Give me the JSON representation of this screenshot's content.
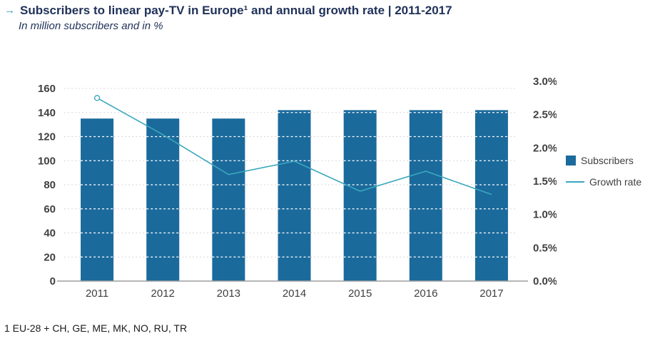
{
  "header": {
    "arrow": "→",
    "title": "Subscribers to linear pay-TV in Europe¹ and annual growth rate | 2011-2017",
    "subtitle": "In million subscribers and in %"
  },
  "footnote": "1 EU-28 + CH, GE, ME, MK, NO, RU, TR",
  "legend": {
    "items": [
      {
        "label": "Subscribers",
        "type": "bar"
      },
      {
        "label": "Growth rate",
        "type": "line"
      }
    ]
  },
  "colors": {
    "bar": "#1b6a9c",
    "line": "#3aa7bd",
    "title": "#1f3058",
    "arrow": "#2f9bb4",
    "axis_text": "#3f3f3f",
    "baseline": "#9e9e9e",
    "gridline": "#d8d8d8"
  },
  "chart_data": {
    "type": "bar",
    "title": "Subscribers to linear pay-TV in Europe¹ and annual growth rate | 2011-2017",
    "subtitle": "In million subscribers and in %",
    "categories": [
      "2011",
      "2012",
      "2013",
      "2014",
      "2015",
      "2016",
      "2017"
    ],
    "series": [
      {
        "name": "Subscribers",
        "type": "bar",
        "axis": "left",
        "values": [
          135,
          135,
          135,
          142,
          142,
          142,
          142
        ]
      },
      {
        "name": "Growth rate",
        "type": "line",
        "axis": "right",
        "markers": "first-only",
        "values": [
          2.75,
          2.2,
          1.6,
          1.8,
          1.35,
          1.65,
          1.3
        ]
      }
    ],
    "left_axis": {
      "min": 0,
      "max": 160,
      "step": 20,
      "label": ""
    },
    "right_axis": {
      "min": 0,
      "max": 3.0,
      "step": 0.5,
      "format": "percent",
      "label": ""
    },
    "grid": true,
    "legend_position": "right"
  }
}
